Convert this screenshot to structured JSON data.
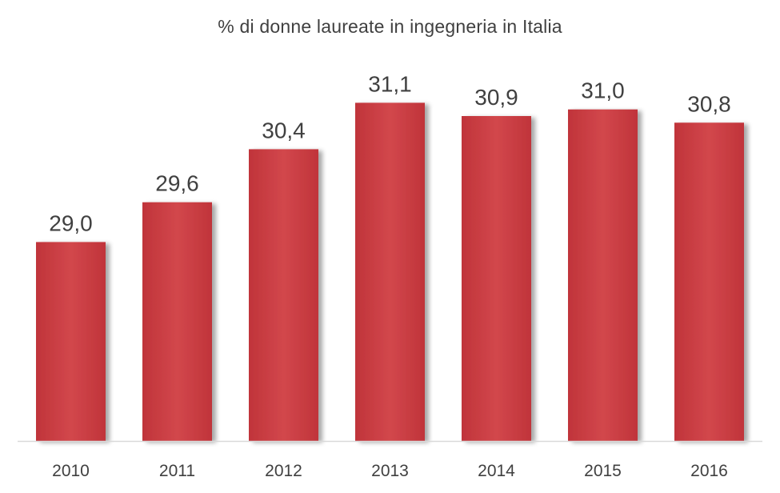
{
  "chart_data": {
    "type": "bar",
    "title": "%  di donne laureate in ingegneria in Italia",
    "categories": [
      "2010",
      "2011",
      "2012",
      "2013",
      "2014",
      "2015",
      "2016"
    ],
    "values": [
      29.0,
      29.6,
      30.4,
      31.1,
      30.9,
      31.0,
      30.8
    ],
    "data_labels": [
      "29,0",
      "29,6",
      "30,4",
      "31,1",
      "30,9",
      "31,0",
      "30,8"
    ],
    "xlabel": "",
    "ylabel": "",
    "ylim": [
      26.0,
      31.6
    ],
    "grid": false,
    "legend": "none",
    "bar_color": "#C0343A",
    "bar_highlight": "#D2474C",
    "shadow_color": "#BDBDBD",
    "text_color": "#404040",
    "axis_color": "#D9D9D9"
  }
}
